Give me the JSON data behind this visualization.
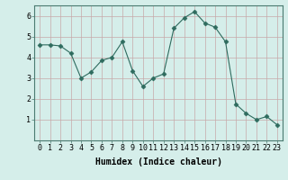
{
  "x": [
    0,
    1,
    2,
    3,
    4,
    5,
    6,
    7,
    8,
    9,
    10,
    11,
    12,
    13,
    14,
    15,
    16,
    17,
    18,
    19,
    20,
    21,
    22,
    23
  ],
  "y": [
    4.6,
    4.6,
    4.55,
    4.2,
    3.0,
    3.3,
    3.85,
    4.0,
    4.75,
    3.35,
    2.6,
    3.0,
    3.2,
    5.4,
    5.9,
    6.2,
    5.65,
    5.45,
    4.75,
    1.75,
    1.3,
    1.0,
    1.15,
    0.75
  ],
  "line_color": "#2e6b5e",
  "marker": "D",
  "marker_size": 2.5,
  "bg_color": "#d5eeea",
  "grid_color": "#c8a8a8",
  "xlabel": "Humidex (Indice chaleur)",
  "xlabel_fontsize": 7,
  "tick_fontsize": 6,
  "xlim": [
    -0.5,
    23.5
  ],
  "ylim": [
    0,
    6.5
  ],
  "yticks": [
    1,
    2,
    3,
    4,
    5,
    6
  ],
  "xticks": [
    0,
    1,
    2,
    3,
    4,
    5,
    6,
    7,
    8,
    9,
    10,
    11,
    12,
    13,
    14,
    15,
    16,
    17,
    18,
    19,
    20,
    21,
    22,
    23
  ]
}
